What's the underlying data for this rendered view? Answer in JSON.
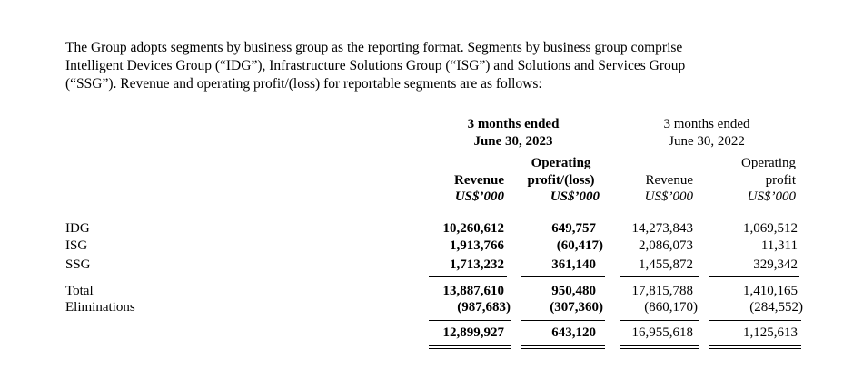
{
  "intro": {
    "line1": "The Group adopts segments by business group as the reporting format. Segments by business group comprise",
    "line2": "Intelligent Devices Group (“IDG”), Infrastructure Solutions Group (“ISG”) and Solutions and Services Group",
    "line3": "(“SSG”). Revenue and operating profit/(loss) for reportable segments are as follows:"
  },
  "table": {
    "period_2023": {
      "line1": "3 months ended",
      "line2": "June 30, 2023"
    },
    "period_2022": {
      "line1": "3 months ended",
      "line2": "June 30, 2022"
    },
    "cols": {
      "rev_2023": {
        "header": "Revenue",
        "unit": "US$’000"
      },
      "op_2023": {
        "header_line1": "Operating",
        "header_line2": "profit/(loss)",
        "unit": "US$’000"
      },
      "rev_2022": {
        "header": "Revenue",
        "unit": "US$’000"
      },
      "op_2022": {
        "header_line1": "Operating",
        "header_line2": "profit",
        "unit": "US$’000"
      }
    },
    "rows": [
      {
        "label": "IDG",
        "rev_2023": "10,260,612",
        "op_2023": "649,757",
        "rev_2022": "14,273,843",
        "op_2022": "1,069,512"
      },
      {
        "label": "ISG",
        "rev_2023": "1,913,766",
        "op_2023": "(60,417)",
        "rev_2022": "2,086,073",
        "op_2022": "11,311"
      },
      {
        "label": "SSG",
        "rev_2023": "1,713,232",
        "op_2023": "361,140",
        "rev_2022": "1,455,872",
        "op_2022": "329,342"
      },
      {
        "label": "Total",
        "rev_2023": "13,887,610",
        "op_2023": "950,480",
        "rev_2022": "17,815,788",
        "op_2022": "1,410,165"
      },
      {
        "label": "Eliminations",
        "rev_2023": "(987,683)",
        "op_2023": "(307,360)",
        "rev_2022": "(860,170)",
        "op_2022": "(284,552)"
      },
      {
        "label": "",
        "rev_2023": "12,899,927",
        "op_2023": "643,120",
        "rev_2022": "16,955,618",
        "op_2022": "1,125,613"
      }
    ]
  }
}
